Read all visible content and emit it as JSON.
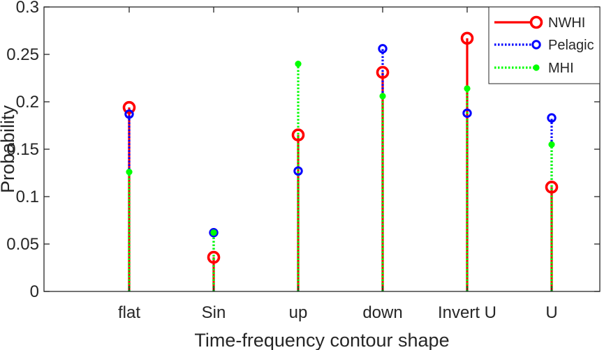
{
  "chart_data": {
    "type": "stem",
    "title": "",
    "xlabel": "Time-frequency contour shape",
    "ylabel": "Probability",
    "categories": [
      "flat",
      "Sin",
      "up",
      "down",
      "Invert U",
      "U"
    ],
    "ylim": [
      0,
      0.3
    ],
    "yticks": [
      0,
      0.05,
      0.1,
      0.15,
      0.2,
      0.25,
      0.3
    ],
    "ytick_labels": [
      "0",
      "0.05",
      "0.1",
      "0.15",
      "0.2",
      "0.25",
      "0.3"
    ],
    "legend_position": "top-right",
    "series": [
      {
        "name": "NWHI",
        "color": "#ff0000",
        "marker": "open-circle-large",
        "line": "solid",
        "values": [
          0.194,
          0.036,
          0.165,
          0.231,
          0.267,
          0.11
        ]
      },
      {
        "name": "Pelagic",
        "color": "#0000ff",
        "marker": "open-circle",
        "line": "dotted",
        "values": [
          0.187,
          0.062,
          0.127,
          0.256,
          0.188,
          0.183
        ]
      },
      {
        "name": "MHI",
        "color": "#00ff00",
        "marker": "filled-dot",
        "line": "dotted",
        "values": [
          0.126,
          0.062,
          0.24,
          0.206,
          0.214,
          0.155
        ]
      }
    ]
  }
}
